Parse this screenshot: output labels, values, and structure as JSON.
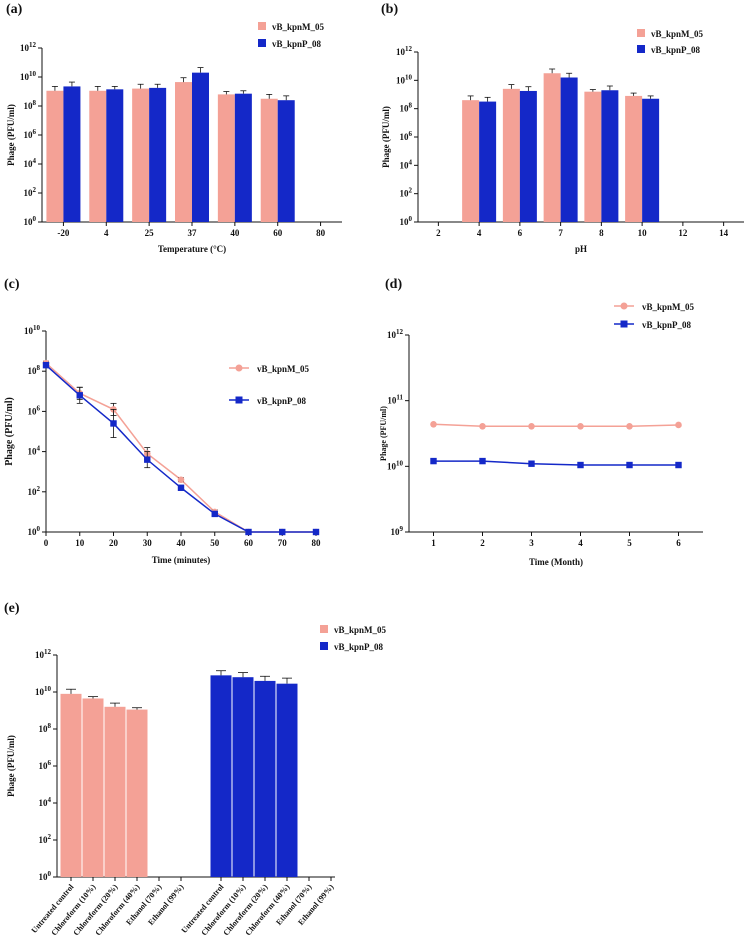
{
  "colors": {
    "pink": "#F4A196",
    "blue": "#1428C8",
    "axis": "#111111"
  },
  "chart_data": [
    {
      "id": "a",
      "panel_label": "(a)",
      "type": "bar",
      "title": "",
      "xlabel": "Temperature (°C)",
      "ylabel": "Phage (PFU/ml)",
      "ylog": true,
      "ylim_exp": [
        0,
        12
      ],
      "ytick_exps": [
        0,
        2,
        4,
        6,
        8,
        10,
        12
      ],
      "categories": [
        "-20",
        "4",
        "25",
        "37",
        "40",
        "60",
        "80"
      ],
      "legend": {
        "position": "top-right"
      },
      "series": [
        {
          "name": "vB_kpnM_05",
          "color": "pink",
          "values_exp": [
            9.05,
            9.05,
            9.2,
            9.65,
            8.8,
            8.5,
            null
          ],
          "err_exp": [
            0.3,
            0.3,
            0.3,
            0.3,
            0.2,
            0.3,
            null
          ]
        },
        {
          "name": "vB_kpnP_08",
          "color": "blue",
          "values_exp": [
            9.35,
            9.15,
            9.25,
            10.3,
            8.85,
            8.4,
            null
          ],
          "err_exp": [
            0.3,
            0.2,
            0.25,
            0.35,
            0.2,
            0.3,
            null
          ]
        }
      ]
    },
    {
      "id": "b",
      "panel_label": "(b)",
      "type": "bar",
      "title": "",
      "xlabel": "pH",
      "ylabel": "Phage (PFU/ml)",
      "ylog": true,
      "ylim_exp": [
        0,
        12
      ],
      "ytick_exps": [
        0,
        2,
        4,
        6,
        8,
        10,
        12
      ],
      "categories": [
        "2",
        "4",
        "6",
        "7",
        "8",
        "10",
        "12",
        "14"
      ],
      "legend": {
        "position": "top-right"
      },
      "series": [
        {
          "name": "vB_kpnM_05",
          "color": "pink",
          "values_exp": [
            null,
            8.6,
            9.4,
            10.5,
            9.2,
            8.9,
            null,
            null
          ],
          "err_exp": [
            null,
            0.3,
            0.3,
            0.3,
            0.15,
            0.2,
            null,
            null
          ]
        },
        {
          "name": "vB_kpnP_08",
          "color": "blue",
          "values_exp": [
            null,
            8.5,
            9.25,
            10.2,
            9.3,
            8.7,
            null,
            null
          ],
          "err_exp": [
            null,
            0.3,
            0.3,
            0.3,
            0.3,
            0.2,
            null,
            null
          ]
        }
      ]
    },
    {
      "id": "c",
      "panel_label": "(c)",
      "type": "line",
      "title": "",
      "xlabel": "Time (minutes)",
      "ylabel": "Phage (PFU/ml)",
      "ylog": true,
      "ylim_exp": [
        0,
        10
      ],
      "ytick_exps": [
        0,
        2,
        4,
        6,
        8,
        10
      ],
      "xlim": [
        0,
        80
      ],
      "xticks": [
        0,
        10,
        20,
        30,
        40,
        50,
        60,
        70,
        80
      ],
      "x": [
        0,
        10,
        20,
        30,
        40,
        50,
        60,
        70,
        80
      ],
      "legend": {
        "position": "center-right"
      },
      "series": [
        {
          "name": "vB_kpnM_05",
          "color": "pink",
          "marker": "circle",
          "values_exp": [
            8.4,
            6.9,
            6.1,
            3.9,
            2.6,
            1.0,
            0,
            0,
            0
          ],
          "err_exp": [
            0.1,
            0.3,
            0.3,
            0.3,
            0.1,
            0.1,
            0,
            0,
            0
          ]
        },
        {
          "name": "vB_kpnP_08",
          "color": "blue",
          "marker": "square",
          "values_exp": [
            8.3,
            6.8,
            5.4,
            3.6,
            2.2,
            0.9,
            0,
            0,
            0
          ],
          "err_exp": [
            0.1,
            0.4,
            0.7,
            0.4,
            0.1,
            0.1,
            0,
            0,
            0
          ]
        }
      ]
    },
    {
      "id": "d",
      "panel_label": "(d)",
      "type": "line",
      "title": "",
      "xlabel": "Time (Month)",
      "ylabel": "Phage (PFU/ml)",
      "ylog": true,
      "ylim_exp": [
        9,
        12
      ],
      "ytick_exps": [
        9,
        10,
        11,
        12
      ],
      "xlim": [
        0.5,
        6.5
      ],
      "xticks": [
        1,
        2,
        3,
        4,
        5,
        6
      ],
      "x": [
        1,
        2,
        3,
        4,
        5,
        6
      ],
      "legend": {
        "position": "top-right"
      },
      "series": [
        {
          "name": "vB_kpnM_05",
          "color": "pink",
          "marker": "circle",
          "values_exp": [
            10.64,
            10.61,
            10.61,
            10.61,
            10.61,
            10.63
          ]
        },
        {
          "name": "vB_kpnP_08",
          "color": "blue",
          "marker": "square",
          "values_exp": [
            10.08,
            10.08,
            10.04,
            10.02,
            10.02,
            10.02
          ]
        }
      ]
    },
    {
      "id": "e",
      "panel_label": "(e)",
      "type": "bar",
      "title": "",
      "xlabel": "",
      "ylabel": "Phage (PFU/ml)",
      "ylog": true,
      "ylim_exp": [
        0,
        12
      ],
      "ytick_exps": [
        0,
        2,
        4,
        6,
        8,
        10,
        12
      ],
      "categories": [
        "Untreated control",
        "Chloroform (10%)",
        "Chloroform (20%)",
        "Chloroform (40%)",
        "Ethanol (70%)",
        "Ethanol (99%)"
      ],
      "legend": {
        "position": "top"
      },
      "series": [
        {
          "name": "vB_kpnM_05",
          "color": "pink",
          "values_exp": [
            9.9,
            9.65,
            9.2,
            9.05,
            null,
            null
          ],
          "err_exp": [
            0.25,
            0.1,
            0.2,
            0.1,
            null,
            null
          ]
        },
        {
          "name": "vB_kpnP_08",
          "color": "blue",
          "values_exp": [
            10.9,
            10.8,
            10.6,
            10.45,
            null,
            null
          ],
          "err_exp": [
            0.25,
            0.25,
            0.25,
            0.3,
            null,
            null
          ]
        }
      ]
    }
  ]
}
